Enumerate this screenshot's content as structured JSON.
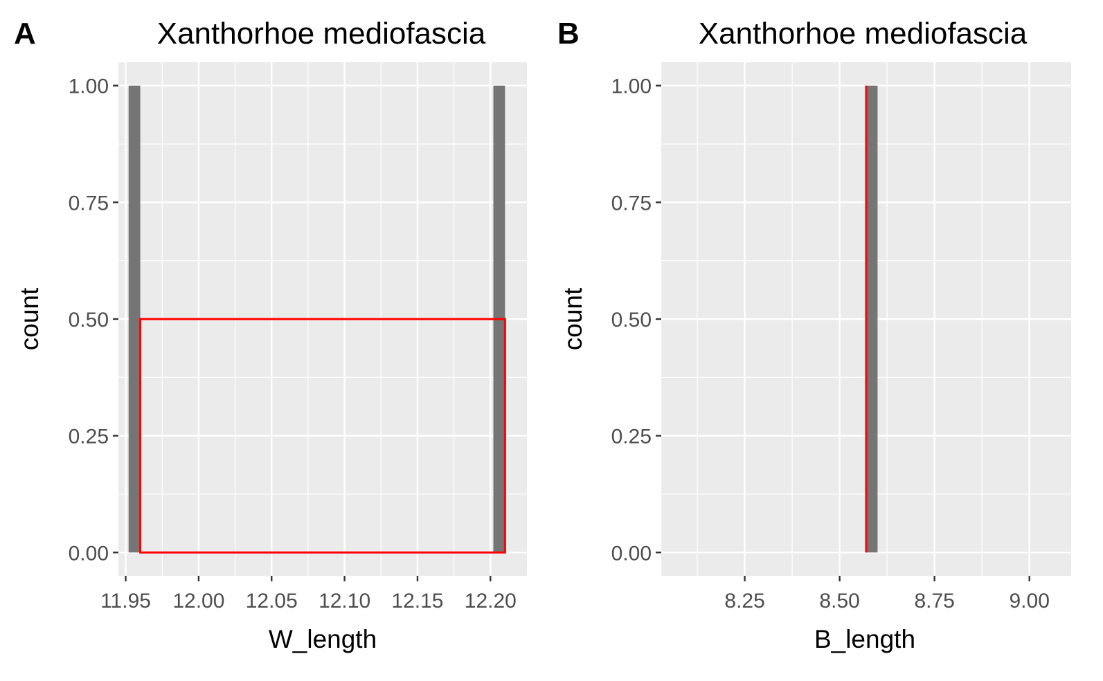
{
  "chart_data": [
    {
      "tag": "A",
      "type": "bar",
      "title": "Xanthorhoe mediofascia",
      "xlabel": "W_length",
      "ylabel": "count",
      "xlim": [
        11.945,
        12.225
      ],
      "ylim": [
        -0.05,
        1.05
      ],
      "x_ticks": [
        {
          "value": 11.95,
          "label": "11.95"
        },
        {
          "value": 12.0,
          "label": "12.00"
        },
        {
          "value": 12.05,
          "label": "12.05"
        },
        {
          "value": 12.1,
          "label": "12.10"
        },
        {
          "value": 12.15,
          "label": "12.15"
        },
        {
          "value": 12.2,
          "label": "12.20"
        }
      ],
      "y_ticks": [
        {
          "value": 0.0,
          "label": "0.00"
        },
        {
          "value": 0.25,
          "label": "0.25"
        },
        {
          "value": 0.5,
          "label": "0.50"
        },
        {
          "value": 0.75,
          "label": "0.75"
        },
        {
          "value": 1.0,
          "label": "1.00"
        }
      ],
      "bars": [
        {
          "x0": 11.952,
          "x1": 11.96,
          "count": 1
        },
        {
          "x0": 12.202,
          "x1": 12.21,
          "count": 1
        }
      ],
      "highlight_box": {
        "x0": 11.96,
        "x1": 12.21,
        "y0": 0.0,
        "y1": 0.5,
        "color": "#ff0000"
      },
      "grid": true,
      "bar_color": "#757575",
      "panel_background": "#ebebeb"
    },
    {
      "tag": "B",
      "type": "bar",
      "title": "Xanthorhoe mediofascia",
      "xlabel": "B_length",
      "ylabel": "count",
      "xlim": [
        8.03,
        9.11
      ],
      "ylim": [
        -0.05,
        1.05
      ],
      "x_ticks": [
        {
          "value": 8.25,
          "label": "8.25"
        },
        {
          "value": 8.5,
          "label": "8.50"
        },
        {
          "value": 8.75,
          "label": "8.75"
        },
        {
          "value": 9.0,
          "label": "9.00"
        }
      ],
      "y_ticks": [
        {
          "value": 0.0,
          "label": "0.00"
        },
        {
          "value": 0.25,
          "label": "0.25"
        },
        {
          "value": 0.5,
          "label": "0.50"
        },
        {
          "value": 0.75,
          "label": "0.75"
        },
        {
          "value": 1.0,
          "label": "1.00"
        }
      ],
      "bars": [
        {
          "x0": 8.57,
          "x1": 8.6,
          "count": 1
        }
      ],
      "highlight_line": {
        "x": 8.57,
        "y0": 0.0,
        "y1": 1.0,
        "color": "#ff0000"
      },
      "grid": true,
      "bar_color": "#757575",
      "panel_background": "#ebebeb"
    }
  ]
}
